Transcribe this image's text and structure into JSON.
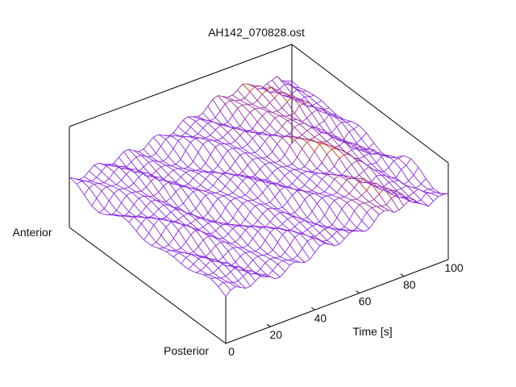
{
  "chart_data": {
    "type": "surface",
    "title": "AH142_070828.ost",
    "xlabel": "Time [s]",
    "ylabel_start": "Posterior",
    "ylabel_end": "Anterior",
    "xlim": [
      0,
      100
    ],
    "x_ticks": [
      "0",
      "20",
      "40",
      "60",
      "80",
      "100"
    ],
    "x_tick_values": [
      0,
      20,
      40,
      60,
      80,
      100
    ],
    "grid": false,
    "legend": "none",
    "time_samples": 46,
    "position_samples": 22,
    "colors": {
      "low": "#8a2be2",
      "mid": "#c0392b",
      "high": "#ffb400",
      "frame": "#000000"
    }
  }
}
